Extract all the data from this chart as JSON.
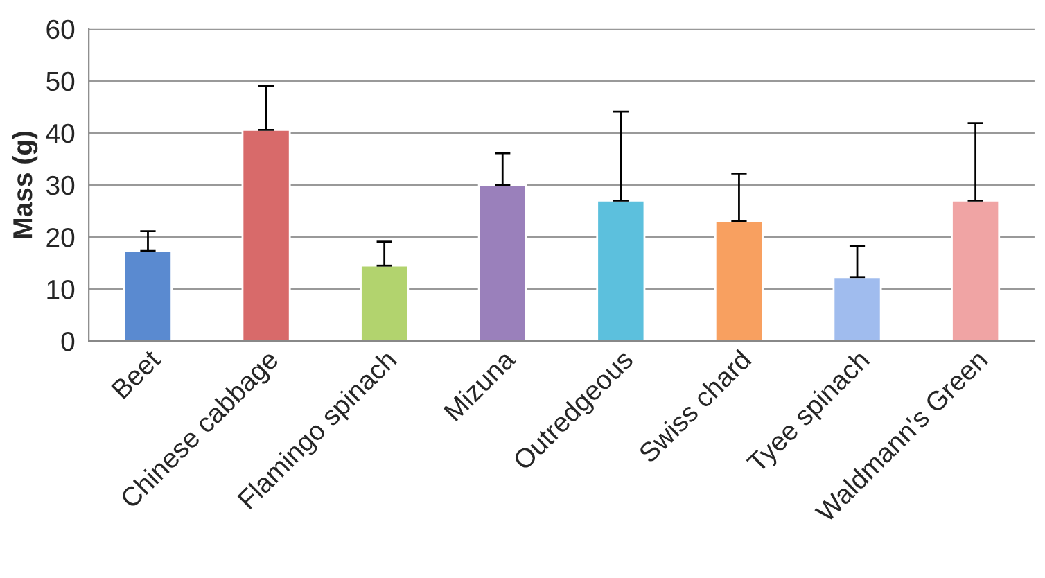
{
  "chart_data": {
    "type": "bar",
    "ylabel": "Mass (g)",
    "categories": [
      "Beet",
      "Chinese cabbage",
      "Flamingo spinach",
      "Mizuna",
      "Outredgeous",
      "Swiss chard",
      "Tyee spinach",
      "Waldmann's Green"
    ],
    "values": [
      17.3,
      40.6,
      14.5,
      30.0,
      27.0,
      23.1,
      12.3,
      27.0
    ],
    "errors": [
      [
        17.3,
        21.1
      ],
      [
        40.6,
        49.0
      ],
      [
        14.5,
        19.1
      ],
      [
        30.0,
        36.1
      ],
      [
        27.0,
        44.1
      ],
      [
        23.1,
        32.2
      ],
      [
        12.3,
        18.3
      ],
      [
        27.0,
        41.9
      ]
    ],
    "colors": [
      "#5a8ad0",
      "#d86a6a",
      "#b2d36e",
      "#9a80bb",
      "#5cc0dd",
      "#f8a060",
      "#a0bcee",
      "#f0a4a4"
    ],
    "ylim": [
      0,
      60
    ],
    "yticks": [
      0,
      10,
      20,
      30,
      40,
      50,
      60
    ],
    "grid": "y"
  }
}
